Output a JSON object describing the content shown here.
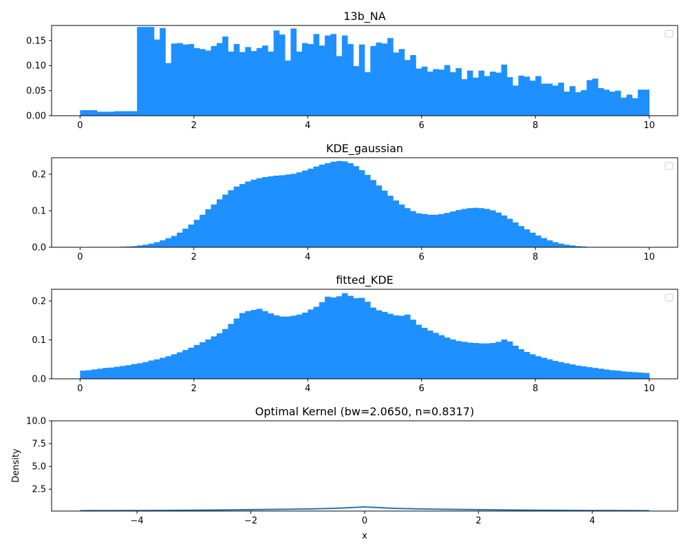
{
  "chart_data": [
    {
      "type": "bar",
      "title": "13b_NA",
      "xlabel": "",
      "ylabel": "",
      "xlim": [
        -0.5,
        10.5
      ],
      "ylim": [
        0,
        0.18
      ],
      "xticks": [
        0,
        2,
        4,
        6,
        8,
        10
      ],
      "yticks": [
        0.0,
        0.05,
        0.1,
        0.15
      ],
      "ytick_labels": [
        "0.00",
        "0.05",
        "0.10",
        "0.15"
      ],
      "color": "#1e90ff",
      "legend": "top-right (empty)",
      "bins": {
        "start": 0,
        "width": 0.1
      },
      "values": [
        0.011,
        0.011,
        0.011,
        0.008,
        0.008,
        0.008,
        0.009,
        0.009,
        0.009,
        0.009,
        0.177,
        0.177,
        0.177,
        0.152,
        0.175,
        0.105,
        0.144,
        0.145,
        0.142,
        0.143,
        0.135,
        0.133,
        0.13,
        0.139,
        0.145,
        0.158,
        0.128,
        0.143,
        0.127,
        0.137,
        0.129,
        0.135,
        0.14,
        0.128,
        0.17,
        0.162,
        0.11,
        0.174,
        0.128,
        0.145,
        0.143,
        0.163,
        0.14,
        0.16,
        0.163,
        0.119,
        0.16,
        0.143,
        0.099,
        0.142,
        0.087,
        0.139,
        0.146,
        0.144,
        0.155,
        0.126,
        0.133,
        0.111,
        0.121,
        0.094,
        0.098,
        0.088,
        0.093,
        0.092,
        0.101,
        0.087,
        0.095,
        0.073,
        0.09,
        0.076,
        0.09,
        0.079,
        0.088,
        0.086,
        0.102,
        0.077,
        0.06,
        0.08,
        0.078,
        0.07,
        0.079,
        0.064,
        0.064,
        0.06,
        0.066,
        0.048,
        0.059,
        0.047,
        0.051,
        0.071,
        0.074,
        0.055,
        0.052,
        0.048,
        0.05,
        0.036,
        0.042,
        0.035,
        0.052,
        0.052
      ]
    },
    {
      "type": "bar",
      "title": "KDE_gaussian",
      "xlabel": "",
      "ylabel": "",
      "xlim": [
        -0.5,
        10.5
      ],
      "ylim": [
        0,
        0.245
      ],
      "xticks": [
        0,
        2,
        4,
        6,
        8,
        10
      ],
      "yticks": [
        0.0,
        0.1,
        0.2
      ],
      "ytick_labels": [
        "0.0",
        "0.1",
        "0.2"
      ],
      "color": "#1e90ff",
      "legend": "top-right (empty)",
      "bins": {
        "start": 0,
        "width": 0.1
      },
      "values": [
        0,
        0,
        0,
        0,
        0,
        0.0005,
        0.001,
        0.0015,
        0.002,
        0.003,
        0.005,
        0.007,
        0.01,
        0.014,
        0.019,
        0.025,
        0.031,
        0.04,
        0.051,
        0.062,
        0.075,
        0.089,
        0.104,
        0.117,
        0.131,
        0.144,
        0.156,
        0.166,
        0.173,
        0.18,
        0.185,
        0.189,
        0.192,
        0.194,
        0.196,
        0.197,
        0.199,
        0.201,
        0.205,
        0.21,
        0.215,
        0.221,
        0.226,
        0.23,
        0.234,
        0.236,
        0.235,
        0.23,
        0.222,
        0.211,
        0.198,
        0.184,
        0.169,
        0.155,
        0.141,
        0.128,
        0.117,
        0.107,
        0.099,
        0.093,
        0.091,
        0.089,
        0.089,
        0.091,
        0.094,
        0.098,
        0.102,
        0.105,
        0.107,
        0.108,
        0.107,
        0.105,
        0.101,
        0.095,
        0.087,
        0.078,
        0.068,
        0.058,
        0.049,
        0.04,
        0.032,
        0.025,
        0.019,
        0.014,
        0.01,
        0.007,
        0.005,
        0.003,
        0.002,
        0.001,
        0.0005,
        0.0003,
        0,
        0,
        0,
        0,
        0,
        0,
        0,
        0
      ]
    },
    {
      "type": "bar",
      "title": "fitted_KDE",
      "xlabel": "",
      "ylabel": "",
      "xlim": [
        -0.5,
        10.5
      ],
      "ylim": [
        0,
        0.23
      ],
      "xticks": [
        0,
        2,
        4,
        6,
        8,
        10
      ],
      "yticks": [
        0.0,
        0.1,
        0.2
      ],
      "ytick_labels": [
        "0.0",
        "0.1",
        "0.2"
      ],
      "color": "#1e90ff",
      "legend": "top-right (empty)",
      "bins": {
        "start": 0,
        "width": 0.1
      },
      "values": [
        0.021,
        0.022,
        0.024,
        0.026,
        0.028,
        0.029,
        0.031,
        0.033,
        0.035,
        0.038,
        0.04,
        0.043,
        0.047,
        0.05,
        0.054,
        0.058,
        0.063,
        0.068,
        0.074,
        0.08,
        0.087,
        0.094,
        0.101,
        0.109,
        0.117,
        0.128,
        0.141,
        0.155,
        0.169,
        0.174,
        0.177,
        0.18,
        0.174,
        0.168,
        0.163,
        0.16,
        0.16,
        0.162,
        0.165,
        0.17,
        0.178,
        0.185,
        0.197,
        0.211,
        0.209,
        0.212,
        0.22,
        0.213,
        0.207,
        0.208,
        0.198,
        0.183,
        0.176,
        0.172,
        0.167,
        0.163,
        0.162,
        0.165,
        0.152,
        0.139,
        0.131,
        0.124,
        0.118,
        0.112,
        0.106,
        0.101,
        0.097,
        0.095,
        0.093,
        0.092,
        0.091,
        0.091,
        0.092,
        0.095,
        0.101,
        0.096,
        0.085,
        0.076,
        0.069,
        0.063,
        0.058,
        0.054,
        0.05,
        0.046,
        0.043,
        0.04,
        0.037,
        0.034,
        0.032,
        0.03,
        0.028,
        0.026,
        0.024,
        0.022,
        0.021,
        0.019,
        0.018,
        0.017,
        0.016,
        0.015
      ]
    },
    {
      "type": "line",
      "title": "Optimal Kernel (bw=2.0650, n=0.8317)",
      "xlabel": "x",
      "ylabel": "Density",
      "xlim": [
        -5.5,
        5.5
      ],
      "ylim": [
        0.1,
        10.0
      ],
      "xticks": [
        -4,
        -2,
        0,
        2,
        4
      ],
      "xtick_labels": [
        "−4",
        "−2",
        "0",
        "2",
        "4"
      ],
      "yticks": [
        2.5,
        5.0,
        7.5,
        10.0
      ],
      "ytick_labels": [
        "2.5",
        "5.0",
        "7.5",
        "10.0"
      ],
      "color": "#1f77b4",
      "x": [
        -5,
        -4,
        -3,
        -2,
        -1,
        -0.5,
        0,
        0.5,
        1,
        2,
        3,
        4,
        5
      ],
      "y": [
        0.14,
        0.16,
        0.19,
        0.25,
        0.33,
        0.4,
        0.55,
        0.4,
        0.33,
        0.25,
        0.19,
        0.16,
        0.14
      ]
    }
  ]
}
